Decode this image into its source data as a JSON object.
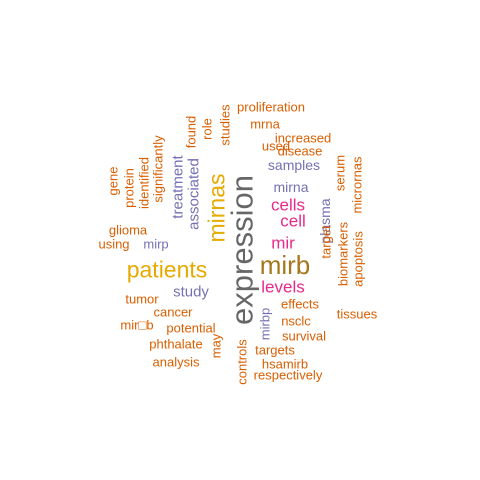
{
  "colors": {
    "c1": "#d95f02",
    "c2": "#7570b3",
    "c3": "#e7298a",
    "c4": "#e6ab02",
    "c5": "#a6761d",
    "c6": "#666666"
  },
  "words": [
    {
      "text": "expression",
      "color": "c6",
      "weight": 1.0
    },
    {
      "text": "mirb",
      "color": "c5",
      "weight": 0.6
    },
    {
      "text": "patients",
      "color": "c4",
      "weight": 0.55
    },
    {
      "text": "mirnas",
      "color": "c4",
      "weight": 0.55
    },
    {
      "text": "cells",
      "color": "c3",
      "weight": 0.4
    },
    {
      "text": "cell",
      "color": "c3",
      "weight": 0.4
    },
    {
      "text": "mir",
      "color": "c3",
      "weight": 0.4
    },
    {
      "text": "levels",
      "color": "c3",
      "weight": 0.4
    },
    {
      "text": "study",
      "color": "c2",
      "weight": 0.3
    },
    {
      "text": "associated",
      "color": "c2",
      "weight": 0.3
    },
    {
      "text": "treatment",
      "color": "c2",
      "weight": 0.3
    },
    {
      "text": "samples",
      "color": "c2",
      "weight": 0.3
    },
    {
      "text": "mirna",
      "color": "c2",
      "weight": 0.3
    },
    {
      "text": "plasma",
      "color": "c2",
      "weight": 0.3
    },
    {
      "text": "mirp",
      "color": "c2",
      "weight": 0.3
    },
    {
      "text": "mirbp",
      "color": "c2",
      "weight": 0.3
    },
    {
      "text": "proliferation",
      "color": "c1",
      "weight": 0.2
    },
    {
      "text": "mrna",
      "color": "c1",
      "weight": 0.2
    },
    {
      "text": "increased",
      "color": "c1",
      "weight": 0.2
    },
    {
      "text": "disease",
      "color": "c1",
      "weight": 0.2
    },
    {
      "text": "used",
      "color": "c1",
      "weight": 0.2
    },
    {
      "text": "studies",
      "color": "c1",
      "weight": 0.2
    },
    {
      "text": "role",
      "color": "c1",
      "weight": 0.2
    },
    {
      "text": "found",
      "color": "c1",
      "weight": 0.2
    },
    {
      "text": "significantly",
      "color": "c1",
      "weight": 0.2
    },
    {
      "text": "identified",
      "color": "c1",
      "weight": 0.2
    },
    {
      "text": "protein",
      "color": "c1",
      "weight": 0.2
    },
    {
      "text": "gene",
      "color": "c1",
      "weight": 0.2
    },
    {
      "text": "glioma",
      "color": "c1",
      "weight": 0.2
    },
    {
      "text": "using",
      "color": "c1",
      "weight": 0.2
    },
    {
      "text": "serum",
      "color": "c1",
      "weight": 0.2
    },
    {
      "text": "micrornas",
      "color": "c1",
      "weight": 0.2
    },
    {
      "text": "target",
      "color": "c1",
      "weight": 0.2
    },
    {
      "text": "biomarkers",
      "color": "c1",
      "weight": 0.2
    },
    {
      "text": "apoptosis",
      "color": "c1",
      "weight": 0.2
    },
    {
      "text": "tumor",
      "color": "c1",
      "weight": 0.2
    },
    {
      "text": "cancer",
      "color": "c1",
      "weight": 0.2
    },
    {
      "text": "mir□b",
      "color": "c1",
      "weight": 0.2
    },
    {
      "text": "potential",
      "color": "c1",
      "weight": 0.2
    },
    {
      "text": "phthalate",
      "color": "c1",
      "weight": 0.2
    },
    {
      "text": "analysis",
      "color": "c1",
      "weight": 0.2
    },
    {
      "text": "may",
      "color": "c1",
      "weight": 0.2
    },
    {
      "text": "effects",
      "color": "c1",
      "weight": 0.2
    },
    {
      "text": "nsclc",
      "color": "c1",
      "weight": 0.2
    },
    {
      "text": "tissues",
      "color": "c1",
      "weight": 0.2
    },
    {
      "text": "survival",
      "color": "c1",
      "weight": 0.2
    },
    {
      "text": "targets",
      "color": "c1",
      "weight": 0.2
    },
    {
      "text": "hsamirb",
      "color": "c1",
      "weight": 0.2
    },
    {
      "text": "respectively",
      "color": "c1",
      "weight": 0.2
    },
    {
      "text": "controls",
      "color": "c1",
      "weight": 0.2
    }
  ]
}
